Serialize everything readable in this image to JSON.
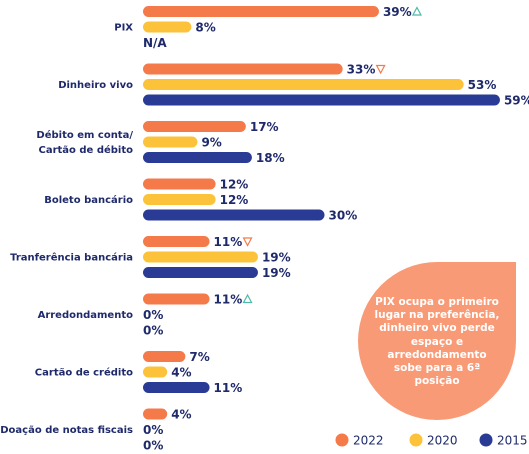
{
  "chart_data": {
    "type": "bar",
    "orientation": "horizontal",
    "categories": [
      [
        "PIX"
      ],
      [
        "Dinheiro vivo"
      ],
      [
        "Débito em conta/",
        "Cartão de débito"
      ],
      [
        "Boleto bancário"
      ],
      [
        "Tranferência bancária"
      ],
      [
        "Arredondamento"
      ],
      [
        "Cartão de crédito"
      ],
      [
        "Doação de notas fiscais"
      ]
    ],
    "series": [
      {
        "name": "2022",
        "color": "#f47a4a",
        "values": [
          39,
          33,
          17,
          12,
          11,
          11,
          7,
          4
        ],
        "labels": [
          "39%",
          "33%",
          "17%",
          "12%",
          "11%",
          "11%",
          "7%",
          "4%"
        ]
      },
      {
        "name": "2020",
        "color": "#fcc33a",
        "values": [
          8,
          53,
          9,
          12,
          19,
          0,
          4,
          0
        ],
        "labels": [
          "8%",
          "53%",
          "9%",
          "12%",
          "19%",
          "0%",
          "4%",
          "0%"
        ]
      },
      {
        "name": "2015",
        "color": "#2a3b96",
        "values": [
          null,
          59,
          18,
          30,
          19,
          0,
          11,
          0
        ],
        "labels": [
          "N/A",
          "59%",
          "18%",
          "30%",
          "19%",
          "0%",
          "11%",
          "0%"
        ]
      }
    ],
    "trend_markers": [
      {
        "category": 0,
        "series": 0,
        "direction": "up",
        "color": "#4fb8a8"
      },
      {
        "category": 1,
        "series": 0,
        "direction": "down",
        "color": "#f47a4a"
      },
      {
        "category": 4,
        "series": 0,
        "direction": "down",
        "color": "#f47a4a"
      },
      {
        "category": 5,
        "series": 0,
        "direction": "up",
        "color": "#4fb8a8"
      }
    ],
    "xlim": [
      0,
      59
    ],
    "legend_position": "bottom-right",
    "grid": false
  },
  "callout": {
    "text": "PIX ocupa o primeiro lugar na preferência, dinheiro vivo perde espaço e arredondamento sobe para a 6ª posição",
    "color": "#f89a76"
  }
}
